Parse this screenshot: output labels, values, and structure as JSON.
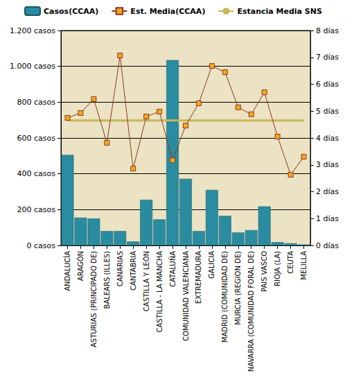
{
  "chart_data": {
    "type": "bar",
    "categories": [
      "ANDALUCÍA",
      "ARAGÓN",
      "ASTURIAS (PRINCIPADO DE)",
      "BALEARS (ILLES)",
      "CANARIAS",
      "CANTABRIA",
      "CASTILLA Y LEÓN",
      "CASTILLA - LA MANCHA",
      "CATALUÑA",
      "COMUNIDAD VALENCIANA",
      "EXTREMADURA",
      "GALICIA",
      "MADRID (COMUNIDAD DE)",
      "MURCIA (REGION DE)",
      "NAVARRA (COMUNIDAD FORAL DE)",
      "PAIS VASCO",
      "RIOJA (LA)",
      "CEUTA",
      "MELILLA"
    ],
    "series": [
      {
        "name": "Casos(CCAA)",
        "type": "bar",
        "color": "#2a8ca0",
        "values": [
          505,
          155,
          150,
          80,
          80,
          22,
          255,
          145,
          1035,
          372,
          80,
          310,
          165,
          72,
          85,
          218,
          18,
          12,
          5
        ]
      },
      {
        "name": "Est. Media(CCAA)",
        "type": "line",
        "axis": "y2",
        "color": "#8b3a1a",
        "marker": "square",
        "values": [
          4.75,
          4.93,
          5.45,
          3.82,
          7.07,
          2.86,
          4.8,
          4.98,
          3.17,
          4.46,
          5.29,
          6.68,
          6.45,
          5.14,
          4.88,
          5.7,
          4.05,
          2.63,
          3.3
        ]
      },
      {
        "name": "Estancia Media SNS",
        "type": "line",
        "axis": "y2",
        "color": "#c8b45a",
        "marker": "none",
        "values": [
          4.65,
          4.65,
          4.65,
          4.65,
          4.65,
          4.65,
          4.65,
          4.65,
          4.65,
          4.65,
          4.65,
          4.65,
          4.65,
          4.65,
          4.65,
          4.65,
          4.65,
          4.65,
          4.65
        ]
      }
    ],
    "ylim": [
      0,
      1200
    ],
    "yticks": [
      {
        "value": 0,
        "label": "0 casos"
      },
      {
        "value": 200,
        "label": "200 casos"
      },
      {
        "value": 400,
        "label": "400 casos"
      },
      {
        "value": 600,
        "label": "600 casos"
      },
      {
        "value": 800,
        "label": "800 casos"
      },
      {
        "value": 1000,
        "label": "1.000 casos"
      },
      {
        "value": 1200,
        "label": "1.200 casos"
      }
    ],
    "y2lim": [
      0,
      8
    ],
    "y2ticks": [
      {
        "value": 0,
        "label": "0 días"
      },
      {
        "value": 1,
        "label": "1 días"
      },
      {
        "value": 2,
        "label": "2 días"
      },
      {
        "value": 3,
        "label": "3 días"
      },
      {
        "value": 4,
        "label": "4 días"
      },
      {
        "value": 5,
        "label": "5 días"
      },
      {
        "value": 6,
        "label": "6 días"
      },
      {
        "value": 7,
        "label": "7 días"
      },
      {
        "value": 8,
        "label": "8 días"
      }
    ],
    "grid": true,
    "legend": "top"
  }
}
